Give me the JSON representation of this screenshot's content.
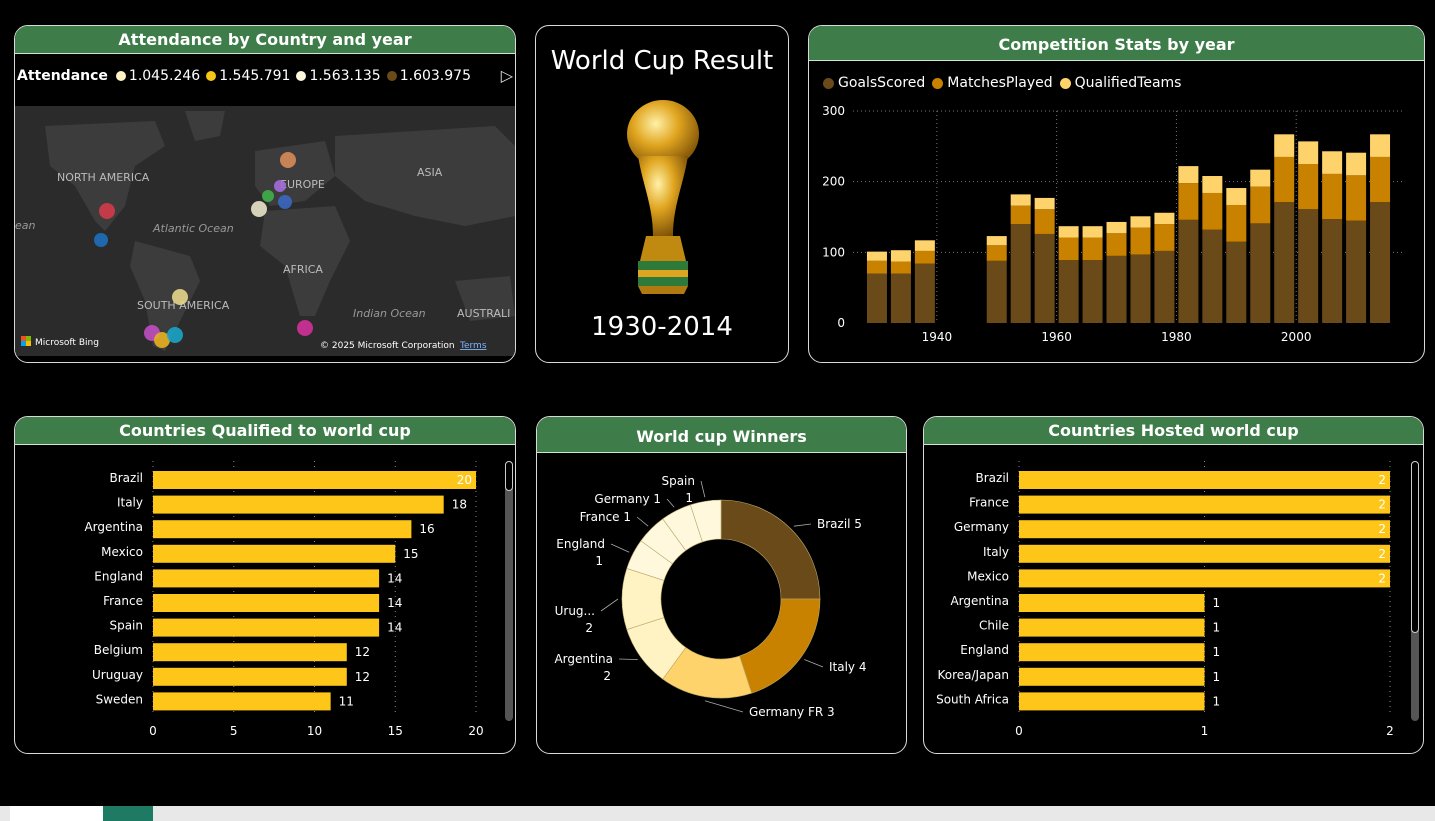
{
  "map_card": {
    "title": "Attendance by Country and year",
    "legend_title": "Attendance",
    "legend_items": [
      {
        "label": "1.045.246",
        "color": "#fff3c4"
      },
      {
        "label": "1.545.791",
        "color": "#f5c518"
      },
      {
        "label": "1.563.135",
        "color": "#fff8dc"
      },
      {
        "label": "1.603.975",
        "color": "#6b4a1a"
      }
    ],
    "labels": {
      "north_america": "NORTH AMERICA",
      "europe": "EUROPE",
      "asia": "ASIA",
      "atlantic": "Atlantic Ocean",
      "africa": "AFRICA",
      "south_america": "SOUTH AMERICA",
      "indian": "Indian Ocean",
      "australia": "AUSTRALI",
      "ocean_left": "ean"
    },
    "bing_label": "Microsoft Bing",
    "copyright": "© 2025 Microsoft Corporation",
    "terms": "Terms"
  },
  "result_card": {
    "title": "World Cup Result",
    "years": "1930-2014",
    "trophy_icon": "trophy-icon"
  },
  "stats_card": {
    "title": "Competition Stats by year",
    "colors": {
      "goals": "#6b4a1a",
      "matches": "#c98100",
      "teams": "#ffd36b"
    }
  },
  "qualified_card": {
    "title": "Countries Qualified to world cup"
  },
  "winners_card": {
    "title": "World cup Winners"
  },
  "hosted_card": {
    "title": "Countries Hosted world cup"
  },
  "chart_data": [
    {
      "type": "bar",
      "stacked": true,
      "title": "Competition Stats by year",
      "legend": [
        "GoalsScored",
        "MatchesPlayed",
        "QualifiedTeams"
      ],
      "legend_position": "top-left",
      "x": [
        1930,
        1934,
        1938,
        1950,
        1954,
        1958,
        1962,
        1966,
        1970,
        1974,
        1978,
        1982,
        1986,
        1990,
        1994,
        1998,
        2002,
        2006,
        2010,
        2014
      ],
      "x_ticks": [
        1940,
        1960,
        1980,
        2000
      ],
      "y_ticks": [
        0,
        100,
        200,
        300
      ],
      "ylim": [
        0,
        300
      ],
      "series": [
        {
          "name": "GoalsScored",
          "values": [
            70,
            70,
            84,
            88,
            140,
            126,
            89,
            89,
            95,
            97,
            102,
            146,
            132,
            115,
            141,
            171,
            161,
            147,
            145,
            171
          ]
        },
        {
          "name": "MatchesPlayed",
          "values": [
            18,
            17,
            18,
            22,
            26,
            35,
            32,
            32,
            32,
            38,
            38,
            52,
            52,
            52,
            52,
            64,
            64,
            64,
            64,
            64
          ]
        },
        {
          "name": "QualifiedTeams",
          "values": [
            13,
            16,
            15,
            13,
            16,
            16,
            16,
            16,
            16,
            16,
            16,
            24,
            24,
            24,
            24,
            32,
            32,
            32,
            32,
            32
          ]
        }
      ],
      "grid": true
    },
    {
      "type": "bar",
      "orientation": "horizontal",
      "title": "Countries Qualified to world cup",
      "categories": [
        "Brazil",
        "Italy",
        "Argentina",
        "Mexico",
        "England",
        "France",
        "Spain",
        "Belgium",
        "Uruguay",
        "Sweden"
      ],
      "values": [
        20,
        18,
        16,
        15,
        14,
        14,
        14,
        12,
        12,
        11
      ],
      "x_ticks": [
        0,
        5,
        10,
        15,
        20
      ],
      "xlim": [
        0,
        20
      ],
      "color": "#ffc61a"
    },
    {
      "type": "pie",
      "donut": true,
      "title": "World cup Winners",
      "categories": [
        "Brazil",
        "Italy",
        "Germany FR",
        "Argentina",
        "Urug...",
        "England",
        "France",
        "Germany",
        "Spain"
      ],
      "values": [
        5,
        4,
        3,
        2,
        2,
        1,
        1,
        1,
        1
      ],
      "colors": [
        "#6b4a1a",
        "#c98100",
        "#ffd36b",
        "#fff3c4",
        "#fff3c4",
        "#fff8dc",
        "#fff8dc",
        "#fff8dc",
        "#fff8dc"
      ]
    },
    {
      "type": "bar",
      "orientation": "horizontal",
      "title": "Countries Hosted world cup",
      "categories": [
        "Brazil",
        "France",
        "Germany",
        "Italy",
        "Mexico",
        "Argentina",
        "Chile",
        "England",
        "Korea/Japan",
        "South Africa"
      ],
      "values": [
        2,
        2,
        2,
        2,
        2,
        1,
        1,
        1,
        1,
        1
      ],
      "x_ticks": [
        0,
        1,
        2
      ],
      "xlim": [
        0,
        2
      ],
      "color": "#ffc61a"
    }
  ]
}
